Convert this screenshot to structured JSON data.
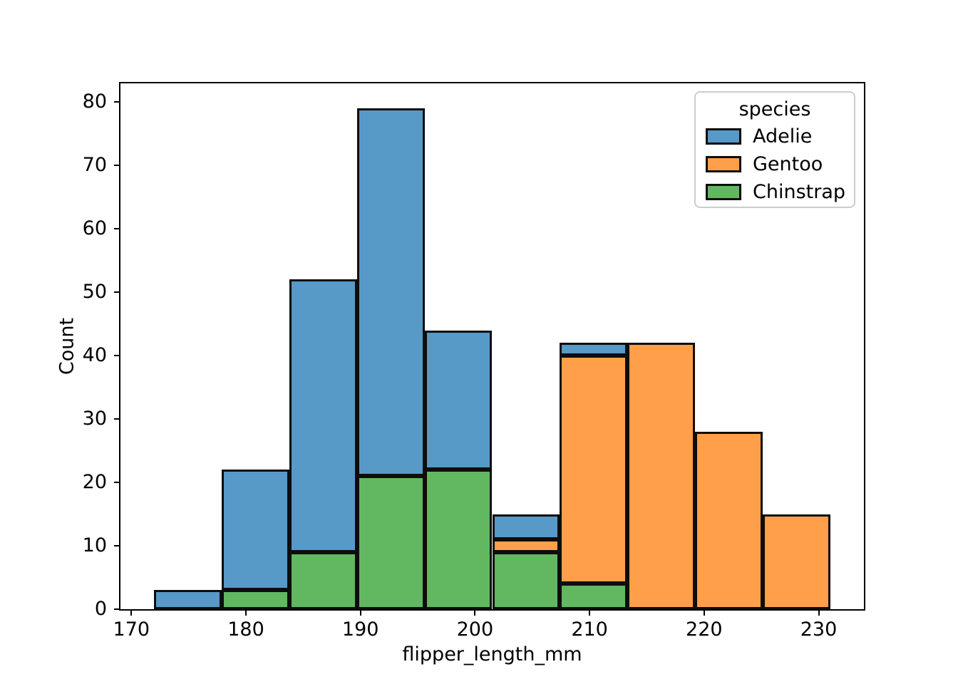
{
  "chart_data": {
    "type": "bar",
    "subtype": "stacked-histogram",
    "title": "",
    "xlabel": "flipper_length_mm",
    "ylabel": "Count",
    "xlim": [
      169.05,
      233.95
    ],
    "ylim": [
      0,
      82.95
    ],
    "x_ticks": [
      170,
      180,
      190,
      200,
      210,
      220,
      230
    ],
    "y_ticks": [
      0,
      10,
      20,
      30,
      40,
      50,
      60,
      70,
      80
    ],
    "grid": false,
    "bin_edges": [
      172.0,
      177.9,
      183.8,
      189.7,
      195.6,
      201.5,
      207.4,
      213.3,
      219.2,
      225.1,
      231.0
    ],
    "bin_totals": [
      3,
      22,
      52,
      79,
      44,
      15,
      42,
      42,
      28,
      15
    ],
    "stack_order_bottom_to_top": [
      "Chinstrap",
      "Gentoo",
      "Adelie"
    ],
    "series": [
      {
        "name": "Adelie",
        "color": "#5799C7",
        "values": [
          3,
          19,
          43,
          58,
          22,
          4,
          2,
          0,
          0,
          0
        ]
      },
      {
        "name": "Gentoo",
        "color": "#FF9F4A",
        "values": [
          0,
          0,
          0,
          0,
          0,
          2,
          36,
          42,
          28,
          15
        ]
      },
      {
        "name": "Chinstrap",
        "color": "#61B861",
        "values": [
          0,
          3,
          9,
          21,
          22,
          9,
          4,
          0,
          0,
          0
        ]
      }
    ],
    "edge_color": "#0d0d0d",
    "legend": {
      "title": "species",
      "position": "upper right",
      "entries": [
        {
          "label": "Adelie",
          "color": "#5799C7"
        },
        {
          "label": "Gentoo",
          "color": "#FF9F4A"
        },
        {
          "label": "Chinstrap",
          "color": "#61B861"
        }
      ]
    }
  }
}
